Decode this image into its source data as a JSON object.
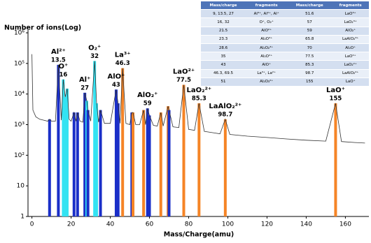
{
  "chart_data": {
    "type": "line",
    "y_label": "Number of ions(Log)",
    "x_label": "Mass/Charge(amu)",
    "log": true,
    "grid": false,
    "xlim": [
      -2,
      172
    ],
    "ylim": [
      1,
      1000000
    ],
    "xticks": [
      0,
      20,
      40,
      60,
      80,
      100,
      120,
      140,
      160
    ],
    "yticks": [
      1,
      10,
      {
        "value": 100,
        "label": "10²"
      },
      {
        "value": 1000,
        "label": "10³"
      },
      {
        "value": 10000,
        "label": "10⁴"
      },
      {
        "value": 100000,
        "label": "10⁵"
      },
      {
        "value": 1000000,
        "label": "10⁶"
      }
    ],
    "color": "#333333",
    "x": [
      0,
      0.5,
      2,
      4,
      6,
      8,
      9,
      10,
      12,
      13.5,
      15,
      16,
      17,
      18,
      19,
      20,
      21.5,
      22.5,
      23.3,
      24.5,
      26,
      27,
      28,
      28.6,
      30,
      32,
      33,
      34,
      35,
      37,
      40,
      43,
      44,
      45,
      46.3,
      48,
      50,
      51,
      51.6,
      53,
      55,
      57,
      58,
      59,
      60,
      62,
      64,
      65.8,
      67,
      69.5,
      70,
      72,
      75,
      77.5,
      80,
      83,
      85.3,
      88,
      92,
      96,
      98.7,
      101,
      110,
      120,
      130,
      140,
      150,
      155,
      158,
      165,
      170
    ],
    "values": [
      200000,
      3000,
      1800,
      1500,
      1400,
      1300,
      1500,
      1300,
      1300,
      90000,
      1400,
      30000,
      8000,
      15000,
      1500,
      1300,
      2500,
      1300,
      2500,
      1300,
      1200,
      11000,
      6000,
      3000,
      1300,
      120000,
      5000,
      1200,
      3000,
      1100,
      1100,
      14000,
      5000,
      1100,
      70000,
      1100,
      1000,
      2500,
      2500,
      1000,
      1000,
      3000,
      1000,
      3400,
      2000,
      950,
      900,
      2500,
      900,
      4000,
      3000,
      850,
      800,
      20000,
      700,
      650,
      5000,
      600,
      550,
      500,
      1500,
      480,
      420,
      380,
      340,
      310,
      290,
      5000,
      280,
      260,
      250
    ],
    "peaks": {
      "x": [
        9,
        13.5,
        16,
        17,
        18,
        21.5,
        23.3,
        27,
        28,
        28.6,
        32,
        33,
        35,
        43,
        44,
        46.3,
        51,
        51.6,
        57,
        59,
        60,
        65.8,
        69.5,
        70,
        77.5,
        85.3,
        98.7,
        155
      ],
      "values": [
        1500,
        90000,
        30000,
        8000,
        15000,
        2500,
        2500,
        11000,
        6000,
        3000,
        120000,
        5000,
        3000,
        14000,
        5000,
        70000,
        2500,
        2500,
        3000,
        3400,
        2000,
        2500,
        4000,
        3000,
        20000,
        5000,
        1500,
        5000
      ],
      "colors": [
        "#1a2fc8",
        "#1a2fc8",
        "#33e3f2",
        "#33e3f2",
        "#33e3f2",
        "#1a2fc8",
        "#1a2fc8",
        "#1a2fc8",
        "#33e3f2",
        "#1a2fc8",
        "#33e3f2",
        "#33e3f2",
        "#1a2fc8",
        "#1a2fc8",
        "#1a2fc8",
        "#f58426",
        "#1a2fc8",
        "#f58426",
        "#f58426",
        "#1a2fc8",
        "#1a2fc8",
        "#f58426",
        "#f58426",
        "#1a2fc8",
        "#f58426",
        "#f58426",
        "#f58426",
        "#f58426"
      ],
      "ions": [
        null,
        "Al²⁺",
        "O⁺",
        null,
        null,
        null,
        null,
        "Al⁺",
        null,
        null,
        "O₂⁺",
        null,
        null,
        "AlO⁺",
        null,
        "La³⁺",
        null,
        null,
        null,
        "AlO₂⁺",
        null,
        null,
        null,
        null,
        "LaO²⁺",
        "LaO₂²⁺",
        "LaAlO₂²⁺",
        "LaO⁺"
      ]
    }
  },
  "table": {
    "header": [
      "Mass/charge",
      "fragments",
      "Mass/charge",
      "fragments"
    ],
    "rows": [
      [
        "9, 13.5, 27",
        "Al³⁺, Al²⁺, Al⁺",
        "51.6",
        "LaO³⁺"
      ],
      [
        "16, 32",
        "O⁺, O₂⁺",
        "57",
        "LaO₂³⁺"
      ],
      [
        "21.5",
        "AlO²⁺",
        "59",
        "AlO₂⁺"
      ],
      [
        "23.3",
        "Al₂O³⁺",
        "65.8",
        "LaAlO₂³⁺"
      ],
      [
        "28.6",
        "Al₂O₂³⁺",
        "70",
        "Al₂O⁺"
      ],
      [
        "35",
        "Al₂O²⁺",
        "77.5",
        "LaO²⁺"
      ],
      [
        "43",
        "AlO⁺",
        "85.3",
        "LaO₂²⁺"
      ],
      [
        "46.3, 69.5",
        "La³⁺, La²⁺",
        "98.7",
        "LaAlO₂²⁺"
      ],
      [
        "51",
        "Al₂O₃²⁺",
        "155",
        "LaO⁺"
      ]
    ]
  }
}
